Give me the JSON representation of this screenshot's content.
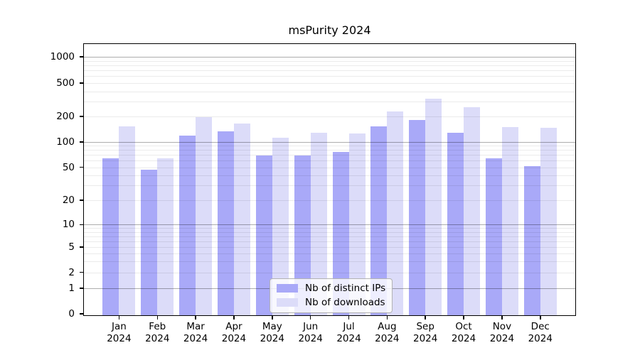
{
  "title": "msPurity 2024",
  "chart_data": {
    "type": "bar",
    "title": "msPurity 2024",
    "categories": [
      "Jan 2024",
      "Feb 2024",
      "Mar 2024",
      "Apr 2024",
      "May 2024",
      "Jun 2024",
      "Jul 2024",
      "Aug 2024",
      "Sep 2024",
      "Oct 2024",
      "Nov 2024",
      "Dec 2024"
    ],
    "series": [
      {
        "name": "Nb of distinct IPs",
        "color": "#a9a9f8",
        "values": [
          65,
          48,
          122,
          135,
          70,
          70,
          78,
          155,
          185,
          130,
          65,
          53
        ]
      },
      {
        "name": "Nb of downloads",
        "color": "#dcdcf9",
        "values": [
          155,
          65,
          200,
          168,
          114,
          130,
          128,
          235,
          335,
          265,
          152,
          150
        ]
      }
    ],
    "xlabel": "",
    "ylabel": "",
    "y_axis": {
      "scale": "log-like (symlog with 0 baseline)",
      "ticks": [
        0,
        1,
        2,
        5,
        10,
        20,
        50,
        100,
        200,
        500,
        1000
      ],
      "ylim": [
        0,
        1400
      ]
    },
    "grid": {
      "horizontal": true,
      "major_at": [
        1,
        10,
        100,
        1000
      ],
      "minor_at": "2-9 × 1, 10, 100",
      "drawn_over_bars": true
    },
    "legend": {
      "position": "bottom-center",
      "entries": [
        "Nb of distinct IPs",
        "Nb of downloads"
      ]
    }
  }
}
